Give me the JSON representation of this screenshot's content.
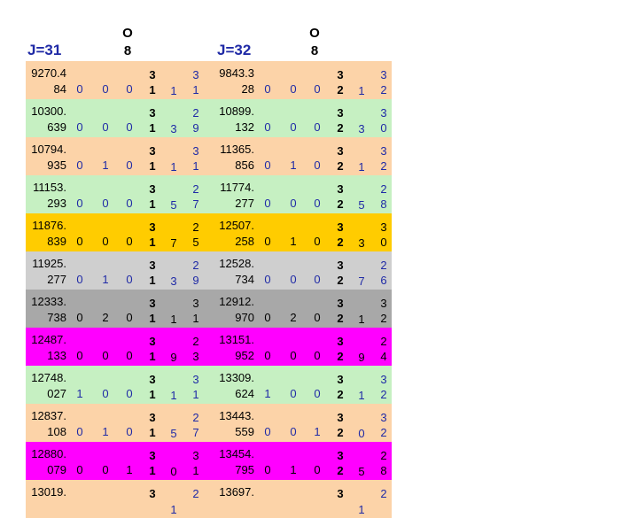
{
  "header": {
    "left_label": "J=31",
    "right_label": "J=32",
    "o8_left": [
      "O",
      "8"
    ],
    "o8_right": [
      "O",
      "8"
    ]
  },
  "colors": {
    "peach": "#fcd3a8",
    "green": "#c6f0c2",
    "orange": "#ffcc00",
    "lightgray": "#cfcfcf",
    "darkgray": "#a8a8a8",
    "magenta": "#ff00ff",
    "blue_text": "#1f2aa6",
    "header_blue": "#1f2aa6"
  },
  "rows": [
    {
      "bg": "peach",
      "left": {
        "w": [
          "9270.4",
          "84"
        ],
        "d": [
          "0",
          "0",
          "0"
        ],
        "t1": [
          "3",
          "1"
        ],
        "m": "1",
        "t2": [
          "3",
          "1"
        ]
      },
      "right": {
        "w": [
          "9843.3",
          "28"
        ],
        "d": [
          "0",
          "0",
          "0"
        ],
        "t1": [
          "3",
          "2"
        ],
        "m": "1",
        "t2": [
          "3",
          "2"
        ]
      }
    },
    {
      "bg": "green",
      "left": {
        "w": [
          "10300.",
          "639"
        ],
        "d": [
          "0",
          "0",
          "0"
        ],
        "t1": [
          "3",
          "1"
        ],
        "m": "3",
        "t2": [
          "2",
          "9"
        ]
      },
      "right": {
        "w": [
          "10899.",
          "132"
        ],
        "d": [
          "0",
          "0",
          "0"
        ],
        "t1": [
          "3",
          "2"
        ],
        "m": "3",
        "t2": [
          "3",
          "0"
        ]
      }
    },
    {
      "bg": "peach",
      "left": {
        "w": [
          "10794.",
          "935"
        ],
        "d": [
          "0",
          "1",
          "0"
        ],
        "t1": [
          "3",
          "1"
        ],
        "m": "1",
        "t2": [
          "3",
          "1"
        ]
      },
      "right": {
        "w": [
          "11365.",
          "856"
        ],
        "d": [
          "0",
          "1",
          "0"
        ],
        "t1": [
          "3",
          "2"
        ],
        "m": "1",
        "t2": [
          "3",
          "2"
        ]
      }
    },
    {
      "bg": "green",
      "left": {
        "w": [
          "11153.",
          "293"
        ],
        "d": [
          "0",
          "0",
          "0"
        ],
        "t1": [
          "3",
          "1"
        ],
        "m": "5",
        "t2": [
          "2",
          "7"
        ]
      },
      "right": {
        "w": [
          "11774.",
          "277"
        ],
        "d": [
          "0",
          "0",
          "0"
        ],
        "t1": [
          "3",
          "2"
        ],
        "m": "5",
        "t2": [
          "2",
          "8"
        ]
      }
    },
    {
      "bg": "orange",
      "left": {
        "w": [
          "11876.",
          "839"
        ],
        "d": [
          "0",
          "0",
          "0"
        ],
        "t1": [
          "3",
          "1"
        ],
        "m": "7",
        "t2": [
          "2",
          "5"
        ]
      },
      "right": {
        "w": [
          "12507.",
          "258"
        ],
        "d": [
          "0",
          "1",
          "0"
        ],
        "t1": [
          "3",
          "2"
        ],
        "m": "3",
        "t2": [
          "3",
          "0"
        ]
      }
    },
    {
      "bg": "lightgray",
      "left": {
        "w": [
          "11925.",
          "277"
        ],
        "d": [
          "0",
          "1",
          "0"
        ],
        "t1": [
          "3",
          "1"
        ],
        "m": "3",
        "t2": [
          "2",
          "9"
        ]
      },
      "right": {
        "w": [
          "12528.",
          "734"
        ],
        "d": [
          "0",
          "0",
          "0"
        ],
        "t1": [
          "3",
          "2"
        ],
        "m": "7",
        "t2": [
          "2",
          "6"
        ]
      }
    },
    {
      "bg": "darkgray",
      "left": {
        "w": [
          "12333.",
          "738"
        ],
        "d": [
          "0",
          "2",
          "0"
        ],
        "t1": [
          "3",
          "1"
        ],
        "m": "1",
        "t2": [
          "3",
          "1"
        ]
      },
      "right": {
        "w": [
          "12912.",
          "970"
        ],
        "d": [
          "0",
          "2",
          "0"
        ],
        "t1": [
          "3",
          "2"
        ],
        "m": "1",
        "t2": [
          "3",
          "2"
        ]
      }
    },
    {
      "bg": "magenta",
      "left": {
        "w": [
          "12487.",
          "133"
        ],
        "d": [
          "0",
          "0",
          "0"
        ],
        "t1": [
          "3",
          "1"
        ],
        "m": "9",
        "t2": [
          "2",
          "3"
        ]
      },
      "right": {
        "w": [
          "13151.",
          "952"
        ],
        "d": [
          "0",
          "0",
          "0"
        ],
        "t1": [
          "3",
          "2"
        ],
        "m": "9",
        "t2": [
          "2",
          "4"
        ]
      }
    },
    {
      "bg": "green",
      "left": {
        "w": [
          "12748.",
          "027"
        ],
        "d": [
          "1",
          "0",
          "0"
        ],
        "t1": [
          "3",
          "1"
        ],
        "m": "1",
        "t2": [
          "3",
          "1"
        ]
      },
      "right": {
        "w": [
          "13309.",
          "624"
        ],
        "d": [
          "1",
          "0",
          "0"
        ],
        "t1": [
          "3",
          "2"
        ],
        "m": "1",
        "t2": [
          "3",
          "2"
        ]
      }
    },
    {
      "bg": "peach",
      "left": {
        "w": [
          "12837.",
          "108"
        ],
        "d": [
          "0",
          "1",
          "0"
        ],
        "t1": [
          "3",
          "1"
        ],
        "m": "5",
        "t2": [
          "2",
          "7"
        ]
      },
      "right": {
        "w": [
          "13443.",
          "559"
        ],
        "d": [
          "0",
          "0",
          "1"
        ],
        "t1": [
          "3",
          "2"
        ],
        "m": "0",
        "t2": [
          "3",
          "2"
        ]
      }
    },
    {
      "bg": "magenta",
      "left": {
        "w": [
          "12880.",
          "079"
        ],
        "d": [
          "0",
          "0",
          "1"
        ],
        "t1": [
          "3",
          "1"
        ],
        "m": "0",
        "t2": [
          "3",
          "1"
        ]
      },
      "right": {
        "w": [
          "13454.",
          "795"
        ],
        "d": [
          "0",
          "1",
          "0"
        ],
        "t1": [
          "3",
          "2"
        ],
        "m": "5",
        "t2": [
          "2",
          "8"
        ]
      }
    },
    {
      "bg": "peach",
      "left": {
        "w": [
          "13019.",
          ""
        ],
        "d": [
          "",
          "",
          ""
        ],
        "t1": [
          "3",
          ""
        ],
        "m": "1",
        "t2": [
          "2",
          ""
        ]
      },
      "right": {
        "w": [
          "13697.",
          ""
        ],
        "d": [
          "",
          "",
          ""
        ],
        "t1": [
          "3",
          ""
        ],
        "m": "1",
        "t2": [
          "2",
          ""
        ]
      }
    }
  ]
}
